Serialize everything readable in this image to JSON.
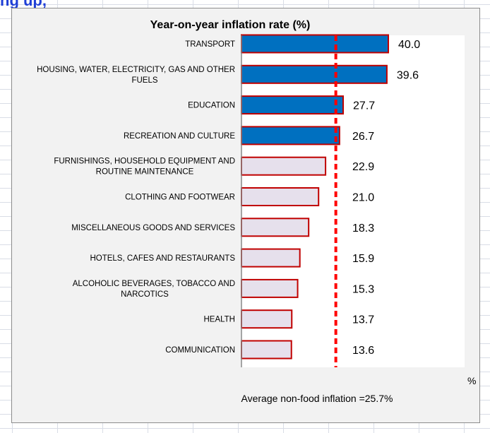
{
  "header_fragment": "ng up,",
  "chart_data": {
    "type": "bar",
    "orientation": "horizontal",
    "title": "Year-on-year inflation rate (%)",
    "unit_label": "%",
    "categories": [
      [
        "TRANSPORT"
      ],
      [
        "HOUSING, WATER, ELECTRICITY, GAS AND OTHER",
        "FUELS"
      ],
      [
        "EDUCATION"
      ],
      [
        "RECREATION AND CULTURE"
      ],
      [
        "FURNISHINGS, HOUSEHOLD EQUIPMENT AND",
        "ROUTINE MAINTENANCE"
      ],
      [
        "CLOTHING AND FOOTWEAR"
      ],
      [
        "MISCELLANEOUS GOODS AND SERVICES"
      ],
      [
        "HOTELS, CAFES AND RESTAURANTS"
      ],
      [
        "ALCOHOLIC BEVERAGES, TOBACCO AND",
        "NARCOTICS"
      ],
      [
        "HEALTH"
      ],
      [
        "COMMUNICATION"
      ]
    ],
    "values": [
      40.0,
      39.6,
      27.7,
      26.7,
      22.9,
      21.0,
      18.3,
      15.9,
      15.3,
      13.7,
      13.6
    ],
    "value_labels": [
      "40.0",
      "39.6",
      "27.7",
      "26.7",
      "22.9",
      "21.0",
      "18.3",
      "15.9",
      "15.3",
      "13.7",
      "13.6"
    ],
    "above_average_color": "#0070c0",
    "below_average_color": "#e6e0ec",
    "bar_border_color": "#c00000",
    "reference_line": {
      "value": 25.7,
      "label": "Average non-food inflation =25.7%",
      "color": "#ff0000",
      "style": "dashed"
    },
    "xlim": [
      0,
      40
    ],
    "grid": false
  }
}
